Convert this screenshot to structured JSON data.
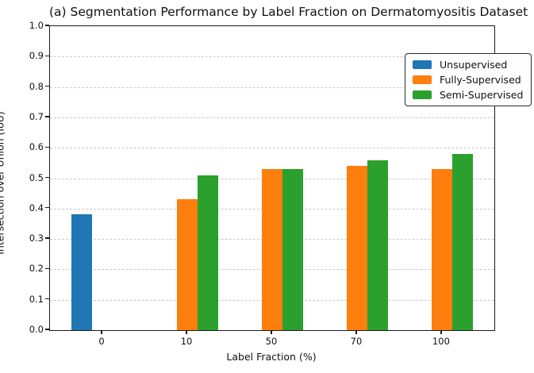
{
  "chart_data": {
    "type": "bar",
    "title": "(a) Segmentation Performance by Label Fraction on Dermatomyositis Dataset",
    "xlabel": "Label Fraction (%)",
    "ylabel": "Intersection over Union (IoU)",
    "categories": [
      "0",
      "10",
      "50",
      "70",
      "100"
    ],
    "series": [
      {
        "name": "Unsupervised",
        "color": "#1f77b4",
        "offset": -1,
        "values": [
          0.38,
          null,
          null,
          null,
          null
        ]
      },
      {
        "name": "Fully-Supervised",
        "color": "#ff7f0e",
        "offset": 0,
        "values": [
          null,
          0.43,
          0.53,
          0.54,
          0.53
        ]
      },
      {
        "name": "Semi-Supervised",
        "color": "#2ca02c",
        "offset": 1,
        "values": [
          null,
          0.51,
          0.53,
          0.56,
          0.58
        ]
      }
    ],
    "ylim": [
      0.0,
      1.0
    ],
    "yticks": [
      "0.0",
      "0.1",
      "0.2",
      "0.3",
      "0.4",
      "0.5",
      "0.6",
      "0.7",
      "0.8",
      "0.9",
      "1.0"
    ],
    "grid": "horizontal-dashed",
    "legend_position": "upper-right"
  },
  "colors": {
    "axis": "#1a1a1a",
    "grid": "#c9c9c9",
    "background": "#ffffff"
  }
}
